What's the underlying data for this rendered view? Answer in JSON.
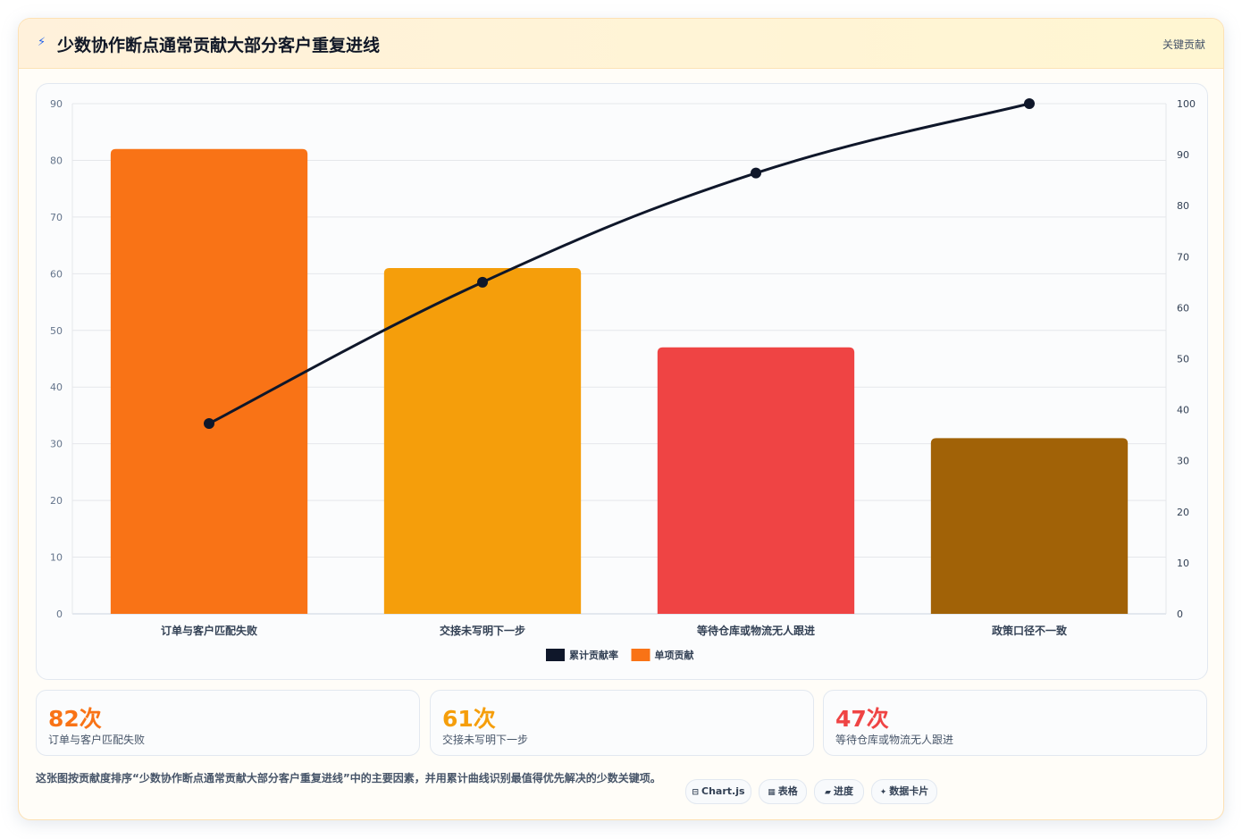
{
  "header": {
    "title": "少数协作断点通常贡献大部分客户重复进线",
    "badge": "关键贡献",
    "icon": "bolt-icon"
  },
  "chart_data": {
    "type": "bar",
    "title": "",
    "xlabel": "",
    "ylabel": "",
    "categories": [
      "订单与客户匹配失败",
      "交接未写明下一步",
      "等待仓库或物流无人跟进",
      "政策口径不一致"
    ],
    "series": [
      {
        "name": "单项贡献",
        "type": "bar",
        "axis": "left",
        "values": [
          82,
          61,
          47,
          31
        ],
        "colors": [
          "#f97316",
          "#f59e0b",
          "#ef4444",
          "#a16207"
        ],
        "legend_color": "#f97316"
      },
      {
        "name": "累计贡献率",
        "type": "line",
        "axis": "right",
        "values": [
          37.3,
          65.0,
          86.4,
          100.0
        ],
        "color": "#0f172a"
      }
    ],
    "ylim": [
      0,
      90
    ],
    "yticks": [
      0,
      10,
      20,
      30,
      40,
      50,
      60,
      70,
      80,
      90
    ],
    "y2lim": [
      0,
      100
    ],
    "y2ticks": [
      0,
      10,
      20,
      30,
      40,
      50,
      60,
      70,
      80,
      90,
      100
    ],
    "grid": true,
    "legend": "bottom-center"
  },
  "kpis": [
    {
      "value": "82次",
      "label": "订单与客户匹配失败",
      "color": "#f97316"
    },
    {
      "value": "61次",
      "label": "交接未写明下一步",
      "color": "#f59e0b"
    },
    {
      "value": "47次",
      "label": "等待仓库或物流无人跟进",
      "color": "#ef4444"
    }
  ],
  "footer": {
    "description": "这张图按贡献度排序“少数协作断点通常贡献大部分客户重复进线”中的主要因素，并用累计曲线识别最值得优先解决的少数关键项。",
    "chips": [
      {
        "icon": "⊟",
        "label": "Chart.js"
      },
      {
        "icon": "▦",
        "label": "表格"
      },
      {
        "icon": "▰",
        "label": "进度"
      },
      {
        "icon": "✦",
        "label": "数据卡片"
      }
    ]
  }
}
